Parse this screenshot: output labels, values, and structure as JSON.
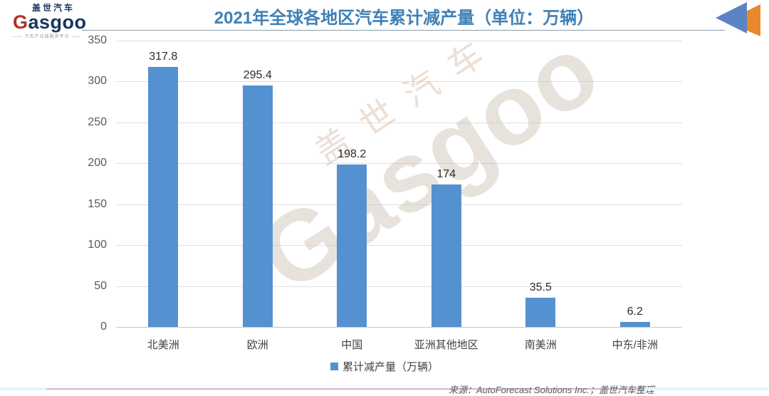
{
  "header": {
    "logo": {
      "chinese": "盖世汽车",
      "latin_g": "G",
      "latin_rest": "asgoo",
      "tagline": "—— 汽车产业链服务平台 ——"
    },
    "title": "2021年全球各地区汽车累计减产量（单位：万辆）"
  },
  "chart_data": {
    "type": "bar",
    "title": "2021年全球各地区汽车累计减产量（单位：万辆）",
    "categories": [
      "北美洲",
      "欧洲",
      "中国",
      "亚洲其他地区",
      "南美洲",
      "中东/非洲"
    ],
    "values": [
      317.8,
      295.4,
      198.2,
      174,
      35.5,
      6.2
    ],
    "value_labels": [
      "317.8",
      "295.4",
      "198.2",
      "174",
      "35.5",
      "6.2"
    ],
    "yticks": [
      350,
      300,
      250,
      200,
      150,
      100,
      50,
      0
    ],
    "ylim": [
      0,
      350
    ],
    "grid": true,
    "bar_color": "#5491D1",
    "legend": {
      "label": "累计减产量（万辆）",
      "position": "bottom",
      "marker_color": "#5491D1"
    }
  },
  "watermark": {
    "line1": "盖世汽车",
    "line2": "Gasgoo"
  },
  "footer": {
    "source": "来源：AutoForecast Solutions Inc.；盖世汽车整理"
  },
  "colors": {
    "title_blue": "#3E80B7",
    "logo_navy": "#15355E",
    "logo_red": "#B03127",
    "icon_blue": "#5B84C4",
    "icon_orange": "#E8872B",
    "gridline": "#DFDFDF",
    "text_dark": "#2b2b2b"
  }
}
